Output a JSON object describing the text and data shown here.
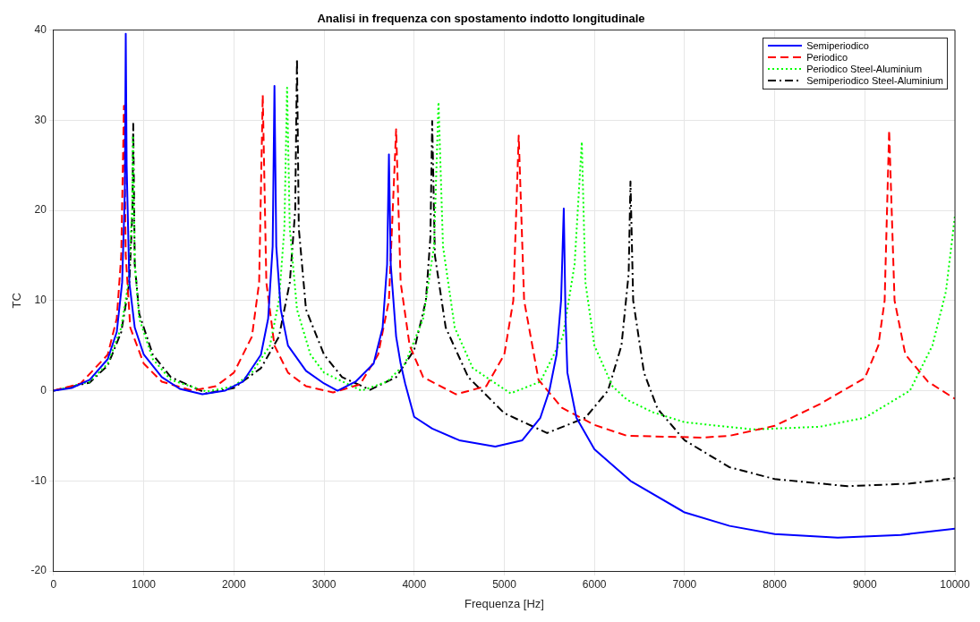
{
  "chart_data": {
    "type": "line",
    "title": "Analisi in frequenza con spostamento indotto longitudinale",
    "xlabel": "Frequenza [Hz]",
    "ylabel": "TC",
    "xlim": [
      0,
      10000
    ],
    "xticks": [
      0,
      1000,
      2000,
      3000,
      4000,
      5000,
      6000,
      7000,
      8000,
      9000,
      10000
    ],
    "ylim": [
      -20,
      40
    ],
    "yticks": [
      -20,
      -10,
      0,
      10,
      20,
      30,
      40
    ],
    "grid": true,
    "legend": "top right",
    "marker": "none",
    "series": [
      {
        "name": "Semiperiodico",
        "color": "#0000ff",
        "line_style": "solid",
        "x": [
          0,
          200,
          400,
          600,
          700,
          760,
          790,
          800,
          810,
          840,
          900,
          1000,
          1200,
          1400,
          1650,
          1900,
          2100,
          2300,
          2380,
          2430,
          2450,
          2470,
          2520,
          2600,
          2800,
          3000,
          3150,
          3350,
          3550,
          3650,
          3700,
          3720,
          3740,
          3800,
          3850,
          3900,
          4000,
          4200,
          4500,
          4900,
          5200,
          5400,
          5500,
          5580,
          5630,
          5660,
          5680,
          5700,
          5800,
          6000,
          6400,
          7000,
          7500,
          8000,
          8700,
          9400,
          10000
        ],
        "values": [
          0,
          0.3,
          1.2,
          3.5,
          6.5,
          12,
          22,
          39.6,
          25,
          12,
          7,
          4,
          1.5,
          0.2,
          -0.4,
          0,
          1,
          4,
          8,
          16,
          33.8,
          16,
          9,
          5,
          2.2,
          0.8,
          0,
          1,
          3,
          7,
          14,
          26.2,
          14,
          6,
          3,
          0.8,
          -2.9,
          -4.2,
          -5.5,
          -6.2,
          -5.5,
          -3,
          0,
          4,
          10,
          20.2,
          8,
          2,
          -3,
          -6.5,
          -10,
          -13.5,
          -15,
          -15.9,
          -16.3,
          -16,
          -15.3
        ]
      },
      {
        "name": "Periodico",
        "color": "#ff0000",
        "line_style": "dashed",
        "x": [
          0,
          300,
          600,
          700,
          750,
          780,
          800,
          850,
          1000,
          1200,
          1540,
          1800,
          2000,
          2200,
          2280,
          2320,
          2360,
          2450,
          2600,
          2800,
          3100,
          3400,
          3600,
          3720,
          3800,
          3850,
          3950,
          4100,
          4465,
          4800,
          5000,
          5100,
          5160,
          5220,
          5380,
          5640,
          6000,
          6360,
          7200,
          7500,
          8000,
          8500,
          9000,
          9150,
          9220,
          9270,
          9330,
          9450,
          9700,
          10000
        ],
        "values": [
          0,
          0.8,
          4,
          8,
          15,
          31.6,
          15,
          7,
          3,
          1,
          0,
          0.5,
          2,
          6,
          12,
          32.8,
          12,
          5,
          2,
          0.5,
          -0.2,
          0.7,
          4,
          10,
          29,
          12,
          5,
          1.5,
          -0.4,
          0.5,
          4,
          10,
          28.3,
          10,
          1.2,
          -1.9,
          -3.8,
          -5,
          -5.2,
          -5,
          -3.9,
          -1.5,
          1.4,
          5,
          10,
          28.9,
          10,
          4,
          1,
          -0.9
        ]
      },
      {
        "name": "Periodico Steel-Aluminium",
        "color": "#00ff00",
        "line_style": "dotted",
        "x": [
          0,
          400,
          600,
          750,
          830,
          870,
          880,
          900,
          950,
          1100,
          1300,
          1700,
          2000,
          2200,
          2400,
          2500,
          2560,
          2590,
          2620,
          2700,
          2850,
          3000,
          3415,
          3700,
          3900,
          4100,
          4220,
          4270,
          4320,
          4450,
          4650,
          5070,
          5400,
          5650,
          5780,
          5860,
          5900,
          6000,
          6200,
          6360,
          6650,
          7000,
          7760,
          8500,
          9000,
          9500,
          9750,
          9900,
          10000
        ],
        "values": [
          0,
          1,
          3,
          7,
          12,
          20,
          28.3,
          14,
          8,
          3.5,
          1.2,
          -0.1,
          0.5,
          2,
          5,
          10,
          18,
          33.6,
          18,
          9,
          4,
          2,
          0,
          1,
          3,
          8,
          16,
          32,
          16,
          7,
          2.5,
          -0.3,
          1,
          6,
          14,
          27.6,
          12,
          5,
          0.5,
          -1,
          -2.4,
          -3.5,
          -4.3,
          -4,
          -3,
          0,
          5,
          11,
          19.4
        ]
      },
      {
        "name": "Semiperiodico Steel-Aluminium",
        "color": "#000000",
        "line_style": "dashdot",
        "x": [
          0,
          400,
          600,
          750,
          840,
          875,
          883,
          900,
          950,
          1100,
          1300,
          1700,
          2000,
          2300,
          2500,
          2620,
          2680,
          2700,
          2720,
          2800,
          3000,
          3200,
          3510,
          3800,
          4000,
          4130,
          4180,
          4200,
          4230,
          4350,
          4600,
          5000,
          5475,
          5900,
          6150,
          6300,
          6380,
          6400,
          6430,
          6550,
          6700,
          7000,
          7500,
          8000,
          8810,
          9500,
          10000
        ],
        "values": [
          0,
          0.9,
          2.8,
          6.5,
          12,
          20,
          29.6,
          14,
          8.5,
          4,
          1.5,
          -0.3,
          0.3,
          2.5,
          6,
          12,
          20,
          36.8,
          18,
          9,
          4,
          1.5,
          0.1,
          1.5,
          4.5,
          10,
          17,
          29.9,
          15,
          7,
          1.5,
          -2.5,
          -4.7,
          -3,
          0,
          5,
          13,
          23.2,
          10,
          2,
          -2,
          -5.5,
          -8.5,
          -9.8,
          -10.6,
          -10.3,
          -9.7
        ]
      }
    ]
  }
}
